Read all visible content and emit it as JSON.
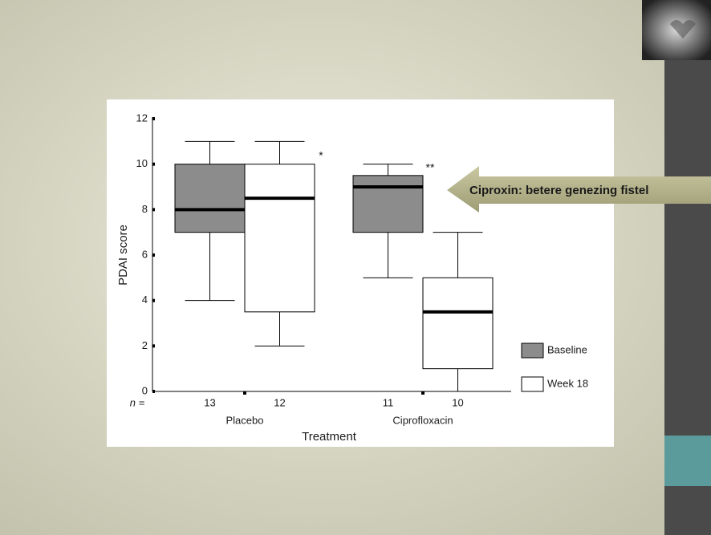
{
  "callout": "Ciproxin: betere genezing fistel",
  "chart_data": {
    "type": "box",
    "y_label": "PDAI score",
    "x_label": "Treatment",
    "n_label": "n =",
    "categories": [
      "Placebo",
      "Ciprofloxacin"
    ],
    "ylim": [
      0,
      12
    ],
    "yticks": [
      0,
      2,
      4,
      6,
      8,
      10,
      12
    ],
    "annotations": [
      "*",
      "**"
    ],
    "series": [
      {
        "name": "Baseline",
        "color": "#8c8c8c",
        "n": [
          13,
          11
        ],
        "values": [
          {
            "min": 4,
            "q1": 7,
            "median": 8,
            "q3": 10,
            "max": 11
          },
          {
            "min": 5,
            "q1": 7,
            "median": 9,
            "q3": 9.5,
            "max": 10
          }
        ]
      },
      {
        "name": "Week 18",
        "color": "#ffffff",
        "n": [
          12,
          10
        ],
        "values": [
          {
            "min": 2,
            "q1": 3.5,
            "median": 8.5,
            "q3": 10,
            "max": 11
          },
          {
            "min": 0,
            "q1": 1,
            "median": 3.5,
            "q3": 5,
            "max": 7
          }
        ]
      }
    ]
  }
}
